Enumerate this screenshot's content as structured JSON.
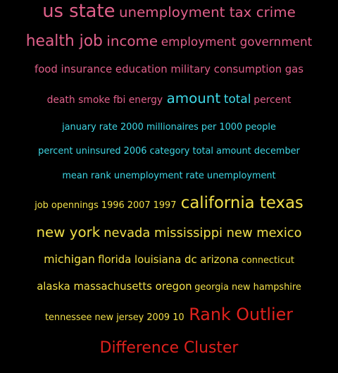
{
  "colors": {
    "background": "#000000",
    "pink": "#e0608a",
    "cyan": "#3fd8e6",
    "yellow": "#f2e04a",
    "red": "#e0221e"
  },
  "lines": [
    {
      "words": [
        {
          "text": "us state",
          "size": 26,
          "color": "pink"
        },
        {
          "text": "unemployment tax crime",
          "size": 20,
          "color": "pink"
        }
      ]
    },
    {
      "words": [
        {
          "text": "health job",
          "size": 22,
          "color": "pink"
        },
        {
          "text": "income",
          "size": 20,
          "color": "pink"
        },
        {
          "text": "employment government",
          "size": 17,
          "color": "pink"
        }
      ]
    },
    {
      "words": [
        {
          "text": "food insurance education military consumption gas",
          "size": 15,
          "color": "pink"
        }
      ]
    },
    {
      "words": [
        {
          "text": "death smoke fbi energy",
          "size": 14,
          "color": "pink"
        },
        {
          "text": "amount",
          "size": 20,
          "color": "cyan"
        },
        {
          "text": "total",
          "size": 17,
          "color": "cyan"
        },
        {
          "text": "percent",
          "size": 14,
          "color": "pink"
        }
      ]
    },
    {
      "words": [
        {
          "text": "january rate 2000 millionaires per 1000 people",
          "size": 13,
          "color": "cyan"
        }
      ]
    },
    {
      "words": [
        {
          "text": "percent uninsured 2006 category total amount december",
          "size": 13,
          "color": "cyan"
        }
      ]
    },
    {
      "words": [
        {
          "text": "mean rank unemployment rate unemployment",
          "size": 13,
          "color": "cyan"
        }
      ]
    },
    {
      "words": [
        {
          "text": "job opennings 1996 2007 1997",
          "size": 13,
          "color": "yellow"
        },
        {
          "text": "california texas",
          "size": 23,
          "color": "yellow"
        }
      ]
    },
    {
      "words": [
        {
          "text": "new york",
          "size": 20,
          "color": "yellow"
        },
        {
          "text": "nevada mississippi new mexico",
          "size": 18,
          "color": "yellow"
        }
      ]
    },
    {
      "words": [
        {
          "text": "michigan",
          "size": 16,
          "color": "yellow"
        },
        {
          "text": "florida louisiana dc arizona",
          "size": 15,
          "color": "yellow"
        },
        {
          "text": "connecticut",
          "size": 13,
          "color": "yellow"
        }
      ]
    },
    {
      "words": [
        {
          "text": "alaska massachusetts oregon",
          "size": 15,
          "color": "yellow"
        },
        {
          "text": "georgia new hampshire",
          "size": 13,
          "color": "yellow"
        }
      ]
    },
    {
      "words": [
        {
          "text": "tennessee new jersey 2009 10",
          "size": 13,
          "color": "yellow"
        },
        {
          "text": "Rank Outlier",
          "size": 24,
          "color": "red"
        }
      ]
    },
    {
      "words": [
        {
          "text": "Difference Cluster",
          "size": 22,
          "color": "red"
        }
      ]
    }
  ]
}
